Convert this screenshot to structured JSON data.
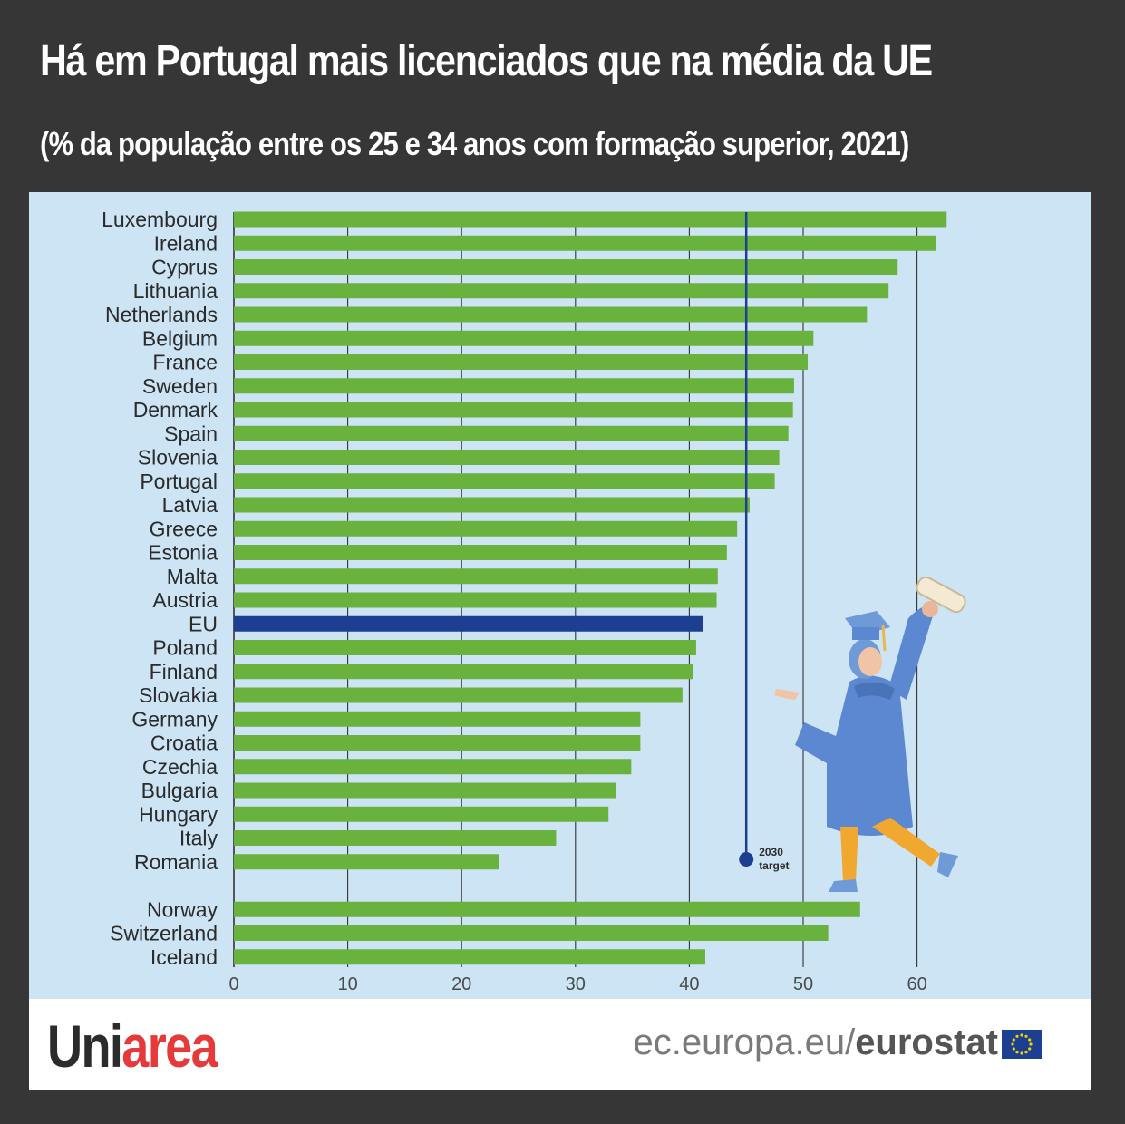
{
  "header": {
    "title": "Há em Portugal mais licenciados que na média da UE",
    "subtitle": "(% da população entre os 25 e 34 anos com formação superior, 2021)"
  },
  "chart_data": {
    "type": "bar",
    "orientation": "horizontal",
    "categories": [
      "Luxembourg",
      "Ireland",
      "Cyprus",
      "Lithuania",
      "Netherlands",
      "Belgium",
      "France",
      "Sweden",
      "Denmark",
      "Spain",
      "Slovenia",
      "Portugal",
      "Latvia",
      "Greece",
      "Estonia",
      "Malta",
      "Austria",
      "EU",
      "Poland",
      "Finland",
      "Slovakia",
      "Germany",
      "Croatia",
      "Czechia",
      "Bulgaria",
      "Hungary",
      "Italy",
      "Romania",
      "Norway",
      "Switzerland",
      "Iceland"
    ],
    "values": [
      62.6,
      61.7,
      58.3,
      57.5,
      55.6,
      50.9,
      50.4,
      49.2,
      49.1,
      48.7,
      47.9,
      47.5,
      45.3,
      44.2,
      43.3,
      42.5,
      42.4,
      41.2,
      40.6,
      40.3,
      39.4,
      35.7,
      35.7,
      34.9,
      33.6,
      32.9,
      28.3,
      23.3,
      55.0,
      52.2,
      41.4
    ],
    "highlight": "EU",
    "xlim": [
      0,
      65
    ],
    "xticks": [
      0,
      10,
      20,
      30,
      40,
      50,
      60
    ],
    "grid": true,
    "target": {
      "value": 45,
      "label_line1": "2030",
      "label_line2": "target"
    },
    "colors": {
      "bar": "#6ab23e",
      "highlight": "#1d3f91",
      "background": "#cde4f5",
      "target": "#1d3f91",
      "grid": "#333333"
    }
  },
  "footer": {
    "brand_part1": "Uni",
    "brand_part2": "area",
    "source_part1": "ec.europa.eu/",
    "source_part2": "eurostat",
    "brand_colors": {
      "dark": "#2b2b2b",
      "red": "#e63a3a"
    },
    "flag_icon": "eu-flag-icon"
  }
}
